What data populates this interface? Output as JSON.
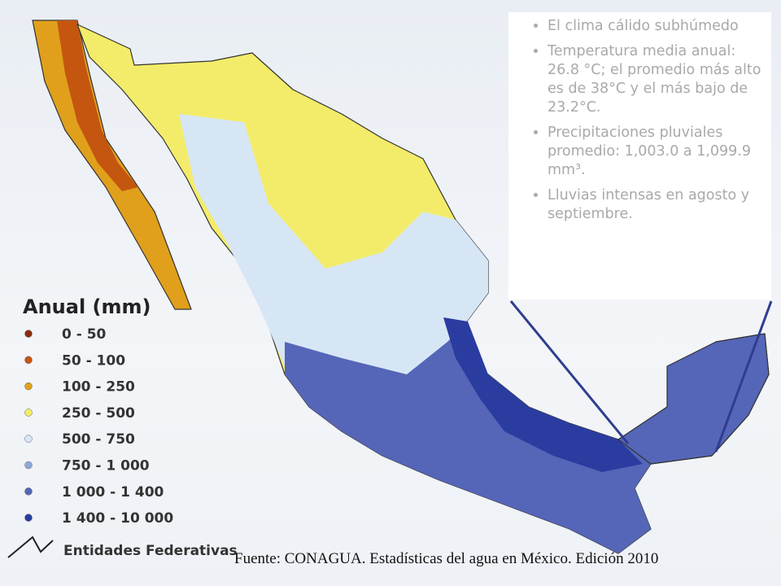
{
  "bullets": [
    "El clima cálido subhúmedo",
    "Temperatura media anual: 26.8 °C; el promedio más alto es de 38°C y el más bajo de 23.2°C.",
    "Precipitaciones pluviales promedio: 1,003.0 a 1,099.9 mm³.",
    "Lluvias intensas en agosto y septiembre."
  ],
  "legend": {
    "title": "Anual (mm)",
    "items": [
      {
        "label": "0 - 50",
        "color": "#8b2a0e"
      },
      {
        "label": "50 - 100",
        "color": "#c4560f"
      },
      {
        "label": "100 - 250",
        "color": "#e0a01c"
      },
      {
        "label": "250 - 500",
        "color": "#f3ec6a"
      },
      {
        "label": "500 - 750",
        "color": "#d7e6f5"
      },
      {
        "label": "750 - 1 000",
        "color": "#8fa6d6"
      },
      {
        "label": "1 000 - 1 400",
        "color": "#5566b8"
      },
      {
        "label": "1 400 - 10 000",
        "color": "#2a3ca0"
      }
    ],
    "boundaries": "Entidades Federativas"
  },
  "source": "Fuente: CONAGUA.  Estadísticas del agua en México. Edición 2010"
}
